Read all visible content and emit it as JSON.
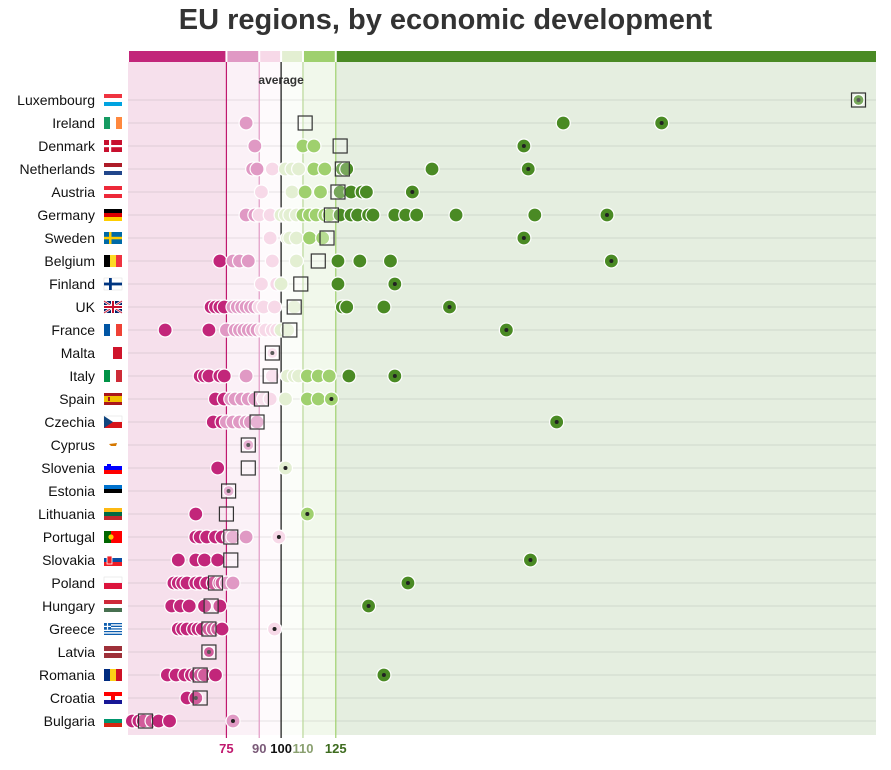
{
  "title": "EU regions, by economic development",
  "chart_data": {
    "type": "scatter",
    "x_domain": [
      30,
      372
    ],
    "average_label": "average",
    "ticks": [
      {
        "label": "75",
        "value": 75,
        "color": "#c0186e"
      },
      {
        "label": "90",
        "value": 90,
        "color": "#7a5a78"
      },
      {
        "label": "100",
        "value": 100,
        "color": "#111111"
      },
      {
        "label": "110",
        "value": 110,
        "color": "#8aa070"
      },
      {
        "label": "125",
        "value": 125,
        "color": "#3d6b1e"
      }
    ],
    "bands": [
      {
        "from": 30,
        "to": 75,
        "color": "#c2267a"
      },
      {
        "from": 75,
        "to": 90,
        "color": "#e099c4"
      },
      {
        "from": 90,
        "to": 100,
        "color": "#f7d9e8"
      },
      {
        "from": 100,
        "to": 110,
        "color": "#e3efd2"
      },
      {
        "from": 110,
        "to": 125,
        "color": "#9fd06e"
      },
      {
        "from": 125,
        "to": 372,
        "color": "#4a8a24"
      }
    ],
    "countries": [
      {
        "name": "Luxembourg",
        "flag": "luxembourg",
        "national": 364,
        "regions": [
          364
        ]
      },
      {
        "name": "Ireland",
        "flag": "ireland",
        "national": 111,
        "regions": [
          84,
          274,
          229
        ]
      },
      {
        "name": "Denmark",
        "flag": "denmark",
        "national": 127,
        "regions": [
          88,
          110,
          115,
          211
        ]
      },
      {
        "name": "Netherlands",
        "flag": "netherlands",
        "national": 128,
        "regions": [
          87,
          89,
          96,
          102,
          105,
          108,
          115,
          120,
          128,
          130,
          169,
          213
        ]
      },
      {
        "name": "Austria",
        "flag": "austria",
        "national": 126,
        "regions": [
          91,
          105,
          111,
          118,
          127,
          132,
          137,
          139,
          160
        ]
      },
      {
        "name": "Germany",
        "flag": "germany",
        "national": 123,
        "regions": [
          84,
          88,
          90,
          95,
          100,
          102,
          104,
          107,
          110,
          113,
          116,
          120,
          122,
          127,
          132,
          135,
          140,
          142,
          152,
          157,
          162,
          180,
          216,
          249
        ]
      },
      {
        "name": "Sweden",
        "flag": "sweden",
        "national": 121,
        "regions": [
          95,
          103,
          104,
          107,
          113,
          119,
          211
        ]
      },
      {
        "name": "Belgium",
        "flag": "belgium",
        "national": 117,
        "regions": [
          72,
          78,
          81,
          85,
          96,
          107,
          126,
          136,
          150,
          251
        ]
      },
      {
        "name": "Finland",
        "flag": "finland",
        "national": 109,
        "regions": [
          91,
          98,
          100,
          126,
          152
        ]
      },
      {
        "name": "UK",
        "flag": "uk",
        "national": 106,
        "regions": [
          68,
          70,
          72,
          74,
          78,
          80,
          82,
          84,
          86,
          88,
          90,
          92,
          97,
          106,
          128,
          130,
          147,
          177
        ]
      },
      {
        "name": "France",
        "flag": "france",
        "national": 104,
        "regions": [
          47,
          67,
          75,
          79,
          81,
          83,
          85,
          87,
          89,
          91,
          93,
          96,
          98,
          100,
          103,
          203
        ]
      },
      {
        "name": "Malta",
        "flag": "malta",
        "national": 96,
        "regions": [
          96
        ]
      },
      {
        "name": "Italy",
        "flag": "italy",
        "national": 95,
        "regions": [
          63,
          65,
          67,
          72,
          74,
          84,
          96,
          103,
          106,
          108,
          112,
          117,
          122,
          131,
          152
        ]
      },
      {
        "name": "Spain",
        "flag": "spain",
        "national": 91,
        "regions": [
          70,
          74,
          77,
          79,
          82,
          85,
          88,
          92,
          95,
          102,
          112,
          117,
          123
        ]
      },
      {
        "name": "Czechia",
        "flag": "czechia",
        "national": 89,
        "regions": [
          69,
          73,
          75,
          78,
          81,
          84,
          86,
          89,
          226
        ]
      },
      {
        "name": "Cyprus",
        "flag": "cyprus",
        "national": 85,
        "regions": [
          85
        ]
      },
      {
        "name": "Slovenia",
        "flag": "slovenia",
        "national": 85,
        "regions": [
          71,
          102
        ]
      },
      {
        "name": "Estonia",
        "flag": "estonia",
        "national": 76,
        "regions": [
          76
        ]
      },
      {
        "name": "Lithuania",
        "flag": "lithuania",
        "national": 75,
        "regions": [
          61,
          112
        ]
      },
      {
        "name": "Portugal",
        "flag": "portugal",
        "national": 77,
        "regions": [
          61,
          63,
          66,
          70,
          73,
          76,
          78,
          84,
          99
        ]
      },
      {
        "name": "Slovakia",
        "flag": "slovakia",
        "national": 77,
        "regions": [
          53,
          61,
          65,
          71,
          214
        ]
      },
      {
        "name": "Poland",
        "flag": "poland",
        "national": 70,
        "regions": [
          51,
          53,
          55,
          57,
          61,
          63,
          66,
          69,
          72,
          73,
          75,
          78,
          158
        ]
      },
      {
        "name": "Hungary",
        "flag": "hungary",
        "national": 68,
        "regions": [
          50,
          54,
          58,
          65,
          72,
          140
        ]
      },
      {
        "name": "Greece",
        "flag": "greece",
        "national": 67,
        "regions": [
          53,
          55,
          57,
          60,
          62,
          64,
          67,
          69,
          71,
          73,
          97
        ]
      },
      {
        "name": "Latvia",
        "flag": "latvia",
        "national": 67,
        "regions": [
          67
        ]
      },
      {
        "name": "Romania",
        "flag": "romania",
        "national": 63,
        "regions": [
          48,
          52,
          56,
          59,
          61,
          63,
          65,
          70,
          147
        ]
      },
      {
        "name": "Croatia",
        "flag": "croatia",
        "national": 63,
        "regions": [
          57,
          61
        ]
      },
      {
        "name": "Bulgaria",
        "flag": "bulgaria",
        "national": 38,
        "regions": [
          32,
          35,
          37,
          41,
          44,
          49,
          78
        ]
      }
    ]
  }
}
